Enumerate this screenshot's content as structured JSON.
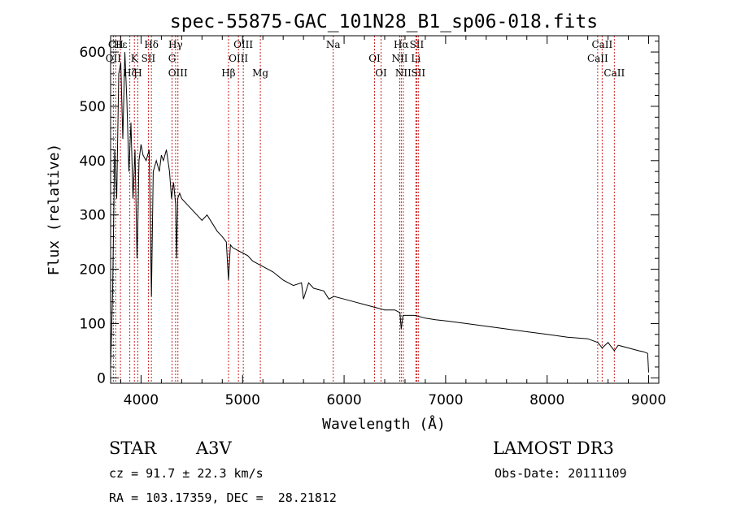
{
  "chart_data": {
    "type": "line",
    "title": "spec-55875-GAC_101N28_B1_sp06-018.fits",
    "xlabel": "Wavelength (Å)",
    "ylabel": "Flux (relative)",
    "xlim": [
      3700,
      9100
    ],
    "ylim": [
      -10,
      630
    ],
    "x_ticks": [
      4000,
      5000,
      6000,
      7000,
      8000,
      9000
    ],
    "y_ticks": [
      0,
      100,
      200,
      300,
      400,
      500,
      600
    ],
    "grid": false,
    "series": [
      {
        "name": "spectrum",
        "x": [
          3700,
          3720,
          3740,
          3760,
          3780,
          3800,
          3820,
          3840,
          3860,
          3880,
          3900,
          3920,
          3940,
          3960,
          3970,
          3980,
          4000,
          4020,
          4050,
          4080,
          4102,
          4120,
          4150,
          4180,
          4200,
          4220,
          4250,
          4280,
          4300,
          4320,
          4340,
          4350,
          4360,
          4380,
          4400,
          4450,
          4500,
          4550,
          4600,
          4650,
          4700,
          4750,
          4800,
          4840,
          4861,
          4880,
          4900,
          4950,
          5000,
          5050,
          5100,
          5150,
          5200,
          5300,
          5400,
          5500,
          5580,
          5600,
          5650,
          5700,
          5800,
          5850,
          5900,
          6000,
          6100,
          6200,
          6300,
          6400,
          6500,
          6550,
          6563,
          6580,
          6650,
          6700,
          6800,
          6900,
          7000,
          7200,
          7400,
          7600,
          7800,
          8000,
          8200,
          8400,
          8500,
          8542,
          8600,
          8662,
          8700,
          8800,
          8900,
          8950,
          8990,
          9000
        ],
        "y": [
          20,
          160,
          420,
          330,
          560,
          580,
          440,
          600,
          510,
          380,
          470,
          330,
          420,
          220,
          300,
          400,
          430,
          410,
          400,
          420,
          150,
          380,
          400,
          380,
          410,
          400,
          420,
          380,
          330,
          360,
          320,
          220,
          330,
          340,
          330,
          320,
          310,
          300,
          290,
          300,
          285,
          270,
          260,
          250,
          180,
          245,
          240,
          235,
          230,
          225,
          215,
          210,
          205,
          195,
          180,
          170,
          175,
          145,
          175,
          165,
          160,
          145,
          150,
          145,
          140,
          135,
          130,
          125,
          125,
          120,
          90,
          115,
          115,
          115,
          110,
          107,
          105,
          100,
          95,
          90,
          85,
          80,
          75,
          72,
          65,
          55,
          65,
          50,
          60,
          55,
          50,
          48,
          45,
          10
        ]
      }
    ],
    "lines": [
      {
        "name": "Hε",
        "wave": 3797
      },
      {
        "name": "OII",
        "wave": 3727
      },
      {
        "name": "Hζ",
        "wave": 3889
      },
      {
        "name": "CII",
        "wave": 3750
      },
      {
        "name": "K",
        "wave": 3934
      },
      {
        "name": "H",
        "wave": 3968
      },
      {
        "name": "Hδ",
        "wave": 4102
      },
      {
        "name": "SII",
        "wave": 4072
      },
      {
        "name": "OIII",
        "wave": 4363
      },
      {
        "name": "Hγ",
        "wave": 4340
      },
      {
        "name": "G",
        "wave": 4305
      },
      {
        "name": "Hβ",
        "wave": 4861
      },
      {
        "name": "OIII",
        "wave": 5007
      },
      {
        "name": "OIII",
        "wave": 4959
      },
      {
        "name": "Mg",
        "wave": 5175
      },
      {
        "name": "Na",
        "wave": 5893
      },
      {
        "name": "OI",
        "wave": 6300
      },
      {
        "name": "OI",
        "wave": 6364
      },
      {
        "name": "Hα",
        "wave": 6563
      },
      {
        "name": "NII",
        "wave": 6548
      },
      {
        "name": "NII",
        "wave": 6583
      },
      {
        "name": "SII",
        "wave": 6716
      },
      {
        "name": "Li",
        "wave": 6707
      },
      {
        "name": "SII",
        "wave": 6731
      },
      {
        "name": "CaII",
        "wave": 8542
      },
      {
        "name": "CaII",
        "wave": 8498
      },
      {
        "name": "CaII",
        "wave": 8662
      }
    ]
  },
  "info": {
    "object_class": "STAR",
    "subclass": "A3V",
    "survey": "LAMOST DR3",
    "redshift": "cz = 91.7 ± 22.3 km/s",
    "obs_date": "Obs-Date: 20111109",
    "coords": "RA = 103.17359, DEC =  28.21812"
  }
}
